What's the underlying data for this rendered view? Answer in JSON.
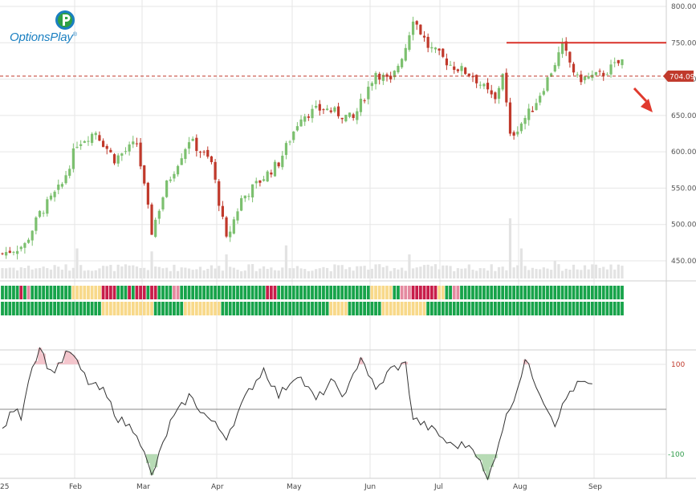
{
  "brand": {
    "name": "OptionsPlay",
    "trademark": "®"
  },
  "colors": {
    "up": "#7cc06f",
    "down": "#c0392b",
    "volume": "#e3e3e3",
    "grid": "#e6e6e6",
    "resistance": "#d9322a",
    "price_tag": "#c0392b",
    "osc_line": "#333333",
    "osc_fill_high": "#f4c6cd",
    "osc_fill_low": "#b7dbb5",
    "label_pos": "#c0392b",
    "label_neg": "#2e9b49"
  },
  "chart_data": {
    "type": "candlestick",
    "price_axis": {
      "ticks": [
        "800.00",
        "750.00",
        "700.00",
        "650.00",
        "600.00",
        "550.00",
        "500.00",
        "450.00"
      ],
      "ylim": [
        425,
        810
      ]
    },
    "oscillator_axis": {
      "ticks": [
        "100",
        "-100"
      ]
    },
    "x_labels": [
      "25",
      "Feb",
      "Mar",
      "Apr",
      "May",
      "Jun",
      "Jul",
      "Aug",
      "Sep"
    ],
    "last_price": "704.09",
    "last_price_value": 704.09,
    "resistance_level": 750,
    "price_path": [
      [
        0,
        460
      ],
      [
        6,
        472
      ],
      [
        10,
        515
      ],
      [
        16,
        555
      ],
      [
        20,
        612
      ],
      [
        25,
        628
      ],
      [
        27,
        612
      ],
      [
        30,
        590
      ],
      [
        36,
        612
      ],
      [
        40,
        490
      ],
      [
        44,
        555
      ],
      [
        50,
        617
      ],
      [
        56,
        585
      ],
      [
        60,
        478
      ],
      [
        64,
        535
      ],
      [
        74,
        585
      ],
      [
        80,
        650
      ],
      [
        86,
        660
      ],
      [
        94,
        645
      ],
      [
        100,
        710
      ],
      [
        104,
        695
      ],
      [
        108,
        745
      ],
      [
        110,
        785
      ],
      [
        114,
        745
      ],
      [
        120,
        720
      ],
      [
        126,
        705
      ],
      [
        132,
        670
      ],
      [
        134,
        710
      ],
      [
        136,
        620
      ],
      [
        142,
        660
      ],
      [
        146,
        700
      ],
      [
        150,
        745
      ],
      [
        154,
        700
      ],
      [
        160,
        705
      ],
      [
        166,
        725
      ]
    ],
    "bars": 167,
    "volume_spikes": [
      [
        20,
        0.5
      ],
      [
        40,
        0.45
      ],
      [
        60,
        0.4
      ],
      [
        76,
        0.55
      ],
      [
        109,
        0.4
      ],
      [
        136,
        1.0
      ],
      [
        139,
        0.5
      ],
      [
        148,
        0.3
      ]
    ],
    "osc_path": [
      [
        0,
        -45
      ],
      [
        3,
        0
      ],
      [
        5,
        -15
      ],
      [
        7,
        70
      ],
      [
        10,
        140
      ],
      [
        13,
        80
      ],
      [
        18,
        130
      ],
      [
        23,
        60
      ],
      [
        27,
        40
      ],
      [
        31,
        -20
      ],
      [
        36,
        -50
      ],
      [
        40,
        -150
      ],
      [
        45,
        -30
      ],
      [
        50,
        30
      ],
      [
        54,
        -10
      ],
      [
        60,
        -60
      ],
      [
        66,
        40
      ],
      [
        70,
        90
      ],
      [
        74,
        30
      ],
      [
        79,
        80
      ],
      [
        84,
        20
      ],
      [
        88,
        60
      ],
      [
        92,
        30
      ],
      [
        96,
        120
      ],
      [
        100,
        40
      ],
      [
        104,
        90
      ],
      [
        108,
        100
      ],
      [
        110,
        -20
      ],
      [
        116,
        -50
      ],
      [
        120,
        -80
      ],
      [
        126,
        -80
      ],
      [
        130,
        -160
      ],
      [
        134,
        -40
      ],
      [
        138,
        50
      ],
      [
        140,
        110
      ],
      [
        145,
        20
      ],
      [
        148,
        -30
      ],
      [
        152,
        40
      ],
      [
        155,
        60
      ],
      [
        158,
        50
      ]
    ],
    "signal_row1": "gggggrgpgggggggggggyyyyyyyyrrrrgggrgrrrgrrggggppgggggggggggggggggggggggrrrgggggggggggggggggggggggggyyyyyyggppprrrrrrryyggppggggggg",
    "signal_row2": "gggggggggggggggggggggggggggyyyyyyyyyyyyyyggggggggyyyyyyyyyygggggggggggggggggggggggggggggyyyyygggggggggyyyyyyyyyyyygggggggggggggg"
  }
}
